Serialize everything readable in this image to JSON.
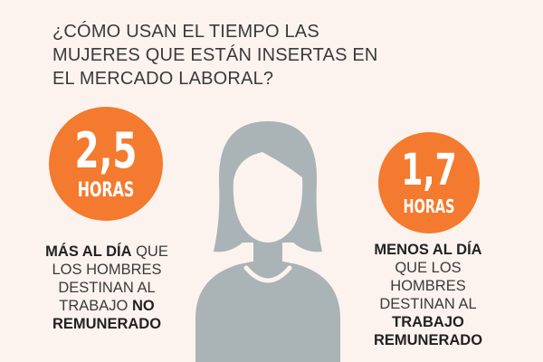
{
  "title": "¿CÓMO USAN EL TIEMPO LAS MUJERES QUE ESTÁN INSERTAS EN EL MERCADO LABORAL?",
  "left_stat": {
    "value": "2,5",
    "unit": "HORAS",
    "caption": {
      "part1_bold": "MÁS AL DÍA",
      "part2": " QUE LOS HOMBRES DESTINAN AL TRABAJO ",
      "part3_bold": "NO REMUNERADO"
    }
  },
  "right_stat": {
    "value": "1,7",
    "unit": "HORAS",
    "caption": {
      "part1_bold": "MENOS AL DÍA",
      "part2": " QUE LOS HOMBRES DESTINAN AL ",
      "part3_bold": "TRABAJO REMUNERADO"
    }
  },
  "colors": {
    "accent": "#f37a2e",
    "figure": "#aab3b5",
    "background": "#fdf3ee"
  },
  "icons": [
    "woman-silhouette-icon"
  ]
}
